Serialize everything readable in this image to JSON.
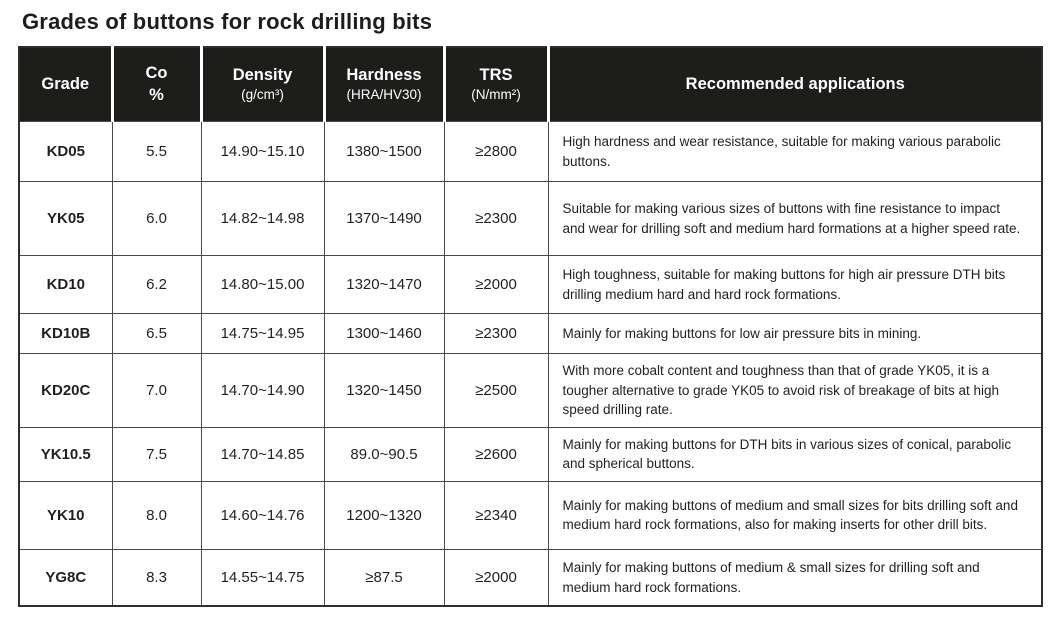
{
  "page": {
    "title": "Grades of buttons for rock drilling bits"
  },
  "colors": {
    "header_bg": "#1d1d1b",
    "header_text": "#ffffff",
    "body_text": "#231f20",
    "border": "#4a4a49"
  },
  "table": {
    "columns": [
      {
        "label": "Grade",
        "sub": ""
      },
      {
        "label": "Co\n%",
        "sub": ""
      },
      {
        "label": "Density",
        "sub": "(g/cm³)"
      },
      {
        "label": "Hardness",
        "sub": "(HRA/HV30)"
      },
      {
        "label": "TRS",
        "sub": "(N/mm²)"
      },
      {
        "label": "Recommended applications",
        "sub": ""
      }
    ],
    "rows": [
      {
        "grade": "KD05",
        "co": "5.5",
        "density": "14.90~15.10",
        "hardness": "1380~1500",
        "trs": "≥2800",
        "application": "High hardness and wear resistance, suitable for making various parabolic buttons."
      },
      {
        "grade": "YK05",
        "co": "6.0",
        "density": "14.82~14.98",
        "hardness": "1370~1490",
        "trs": "≥2300",
        "application": "Suitable for making various sizes of buttons with fine resistance to impact and wear for drilling soft and medium hard formations at a higher speed rate."
      },
      {
        "grade": "KD10",
        "co": "6.2",
        "density": "14.80~15.00",
        "hardness": "1320~1470",
        "trs": "≥2000",
        "application": "High toughness, suitable for making buttons for high air pressure DTH bits drilling medium hard and hard rock formations."
      },
      {
        "grade": "KD10B",
        "co": "6.5",
        "density": "14.75~14.95",
        "hardness": "1300~1460",
        "trs": "≥2300",
        "application": "Mainly for making buttons for low air pressure bits in mining."
      },
      {
        "grade": "KD20C",
        "co": "7.0",
        "density": "14.70~14.90",
        "hardness": "1320~1450",
        "trs": "≥2500",
        "application": "With more cobalt content and toughness than that of grade YK05, it is a tougher alternative to grade YK05 to avoid risk of breakage of bits at high speed drilling rate."
      },
      {
        "grade": "YK10.5",
        "co": "7.5",
        "density": "14.70~14.85",
        "hardness": "89.0~90.5",
        "trs": "≥2600",
        "application": "Mainly for making buttons for DTH bits in various sizes of conical, parabolic and spherical buttons."
      },
      {
        "grade": "YK10",
        "co": "8.0",
        "density": "14.60~14.76",
        "hardness": "1200~1320",
        "trs": "≥2340",
        "application": "Mainly for making buttons of medium and small sizes for bits drilling soft and medium hard rock formations, also for making inserts for other drill bits."
      },
      {
        "grade": "YG8C",
        "co": "8.3",
        "density": "14.55~14.75",
        "hardness": "≥87.5",
        "trs": "≥2000",
        "application": "Mainly for making buttons of medium & small sizes for drilling soft and medium hard rock formations."
      }
    ]
  }
}
